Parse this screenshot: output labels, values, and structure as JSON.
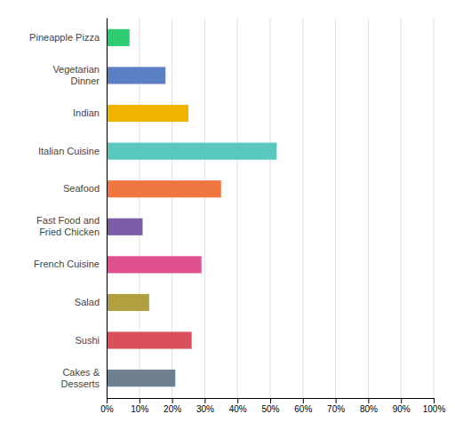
{
  "chart_data": {
    "type": "bar",
    "orientation": "horizontal",
    "categories": [
      "Pineapple Pizza",
      "Vegetarian\nDinner",
      "Indian",
      "Italian Cuisine",
      "Seafood",
      "Fast Food and\nFried Chicken",
      "French Cuisine",
      "Salad",
      "Sushi",
      "Cakes &\nDesserts"
    ],
    "values": [
      7,
      18,
      25,
      52,
      35,
      11,
      29,
      13,
      26,
      21
    ],
    "colors": [
      "#2ecc71",
      "#5b7fc4",
      "#f0b400",
      "#5bc8c0",
      "#f07840",
      "#7b5ea7",
      "#e05090",
      "#b0a040",
      "#d94f5c",
      "#6e7f8d"
    ],
    "xlim": [
      0,
      100
    ],
    "xticks": [
      {
        "value": 0,
        "label": "0%"
      },
      {
        "value": 10,
        "label": "10%"
      },
      {
        "value": 20,
        "label": "20%"
      },
      {
        "value": 30,
        "label": "30%"
      },
      {
        "value": 40,
        "label": "40%"
      },
      {
        "value": 50,
        "label": "50%"
      },
      {
        "value": 60,
        "label": "60%"
      },
      {
        "value": 70,
        "label": "70%"
      },
      {
        "value": 80,
        "label": "80%"
      },
      {
        "value": 90,
        "label": "90%"
      },
      {
        "value": 100,
        "label": "100%"
      }
    ],
    "grid": true
  }
}
